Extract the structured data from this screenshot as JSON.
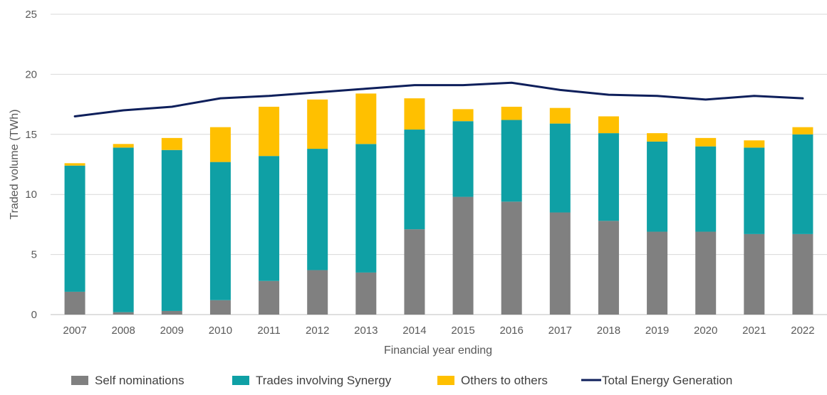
{
  "chart_data": {
    "type": "bar",
    "stacked": true,
    "title": "",
    "xlabel": "Financial year ending",
    "ylabel": "Traded volume (TWh)",
    "ylim": [
      0,
      25
    ],
    "yticks": [
      "0",
      "5",
      "10",
      "15",
      "20",
      "25"
    ],
    "grid": true,
    "legend_position": "bottom",
    "categories": [
      "2007",
      "2008",
      "2009",
      "2010",
      "2011",
      "2012",
      "2013",
      "2014",
      "2015",
      "2016",
      "2017",
      "2018",
      "2019",
      "2020",
      "2021",
      "2022"
    ],
    "series": [
      {
        "name": "Self nominations",
        "type": "bar",
        "color": "#808080",
        "values": [
          1.9,
          0.2,
          0.3,
          1.2,
          2.8,
          3.7,
          3.5,
          7.1,
          9.8,
          9.4,
          8.5,
          7.8,
          6.9,
          6.9,
          6.7,
          6.7
        ]
      },
      {
        "name": "Trades involving Synergy",
        "type": "bar",
        "color": "#0FA0A5",
        "values": [
          10.5,
          13.7,
          13.4,
          11.5,
          10.4,
          10.1,
          10.7,
          8.3,
          6.3,
          6.8,
          7.4,
          7.3,
          7.5,
          7.1,
          7.2,
          8.3
        ]
      },
      {
        "name": "Others to others",
        "type": "bar",
        "color": "#FFC000",
        "values": [
          0.2,
          0.3,
          1.0,
          2.9,
          4.1,
          4.1,
          4.2,
          2.6,
          1.0,
          1.1,
          1.3,
          1.4,
          0.7,
          0.7,
          0.6,
          0.6
        ]
      },
      {
        "name": "Total Energy Generation",
        "type": "line",
        "color": "#0E1F5B",
        "values": [
          16.5,
          17.0,
          17.3,
          18.0,
          18.2,
          18.5,
          18.8,
          19.1,
          19.1,
          19.3,
          18.7,
          18.3,
          18.2,
          17.9,
          18.2,
          18.0
        ]
      }
    ]
  }
}
